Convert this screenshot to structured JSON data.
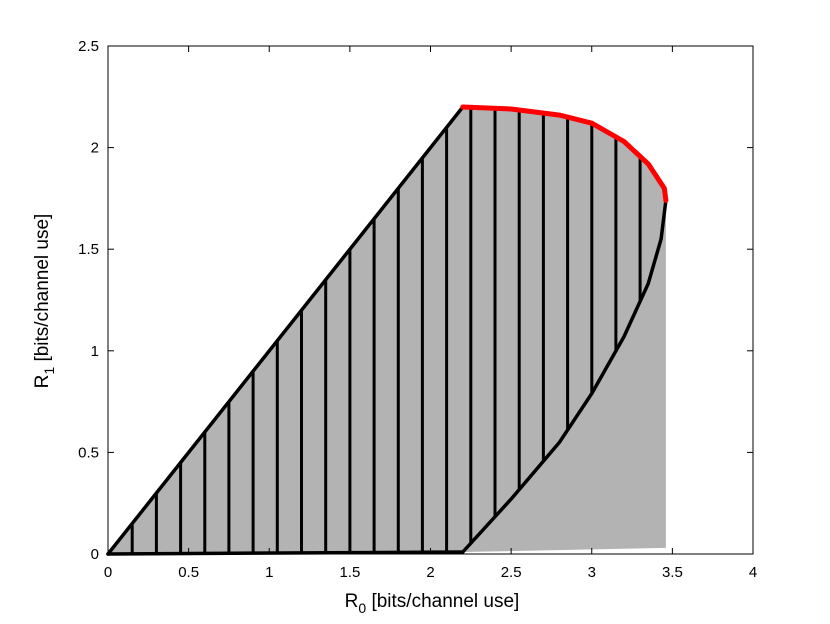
{
  "chart_data": {
    "type": "area",
    "title": "",
    "xlabel_main": "R",
    "xlabel_sub": "0",
    "xlabel_rest": " [bits/channel use]",
    "ylabel_main": "R",
    "ylabel_sub": "1",
    "ylabel_rest": " [bits/channel use]",
    "xlim": [
      0,
      4
    ],
    "ylim": [
      0,
      2.5
    ],
    "xticks": [
      0,
      0.5,
      1,
      1.5,
      2,
      2.5,
      3,
      3.5,
      4
    ],
    "xtick_labels": [
      "0",
      "0.5",
      "1",
      "1.5",
      "2",
      "2.5",
      "3",
      "3.5",
      "4"
    ],
    "yticks": [
      0,
      0.5,
      1,
      1.5,
      2,
      2.5
    ],
    "ytick_labels": [
      "0",
      "0.5",
      "1",
      "1.5",
      "2",
      "2.5"
    ],
    "grid": false,
    "colors": {
      "fill": "#b3b3b3",
      "boundary": "#000000",
      "highlight": "#ff0000"
    },
    "series": [
      {
        "role": "gray-filled-region",
        "points": [
          [
            0,
            0
          ],
          [
            2.2,
            2.2
          ],
          [
            2.5,
            2.19
          ],
          [
            2.8,
            2.16
          ],
          [
            3.0,
            2.12
          ],
          [
            3.2,
            2.03
          ],
          [
            3.35,
            1.92
          ],
          [
            3.45,
            1.8
          ],
          [
            3.46,
            1.74
          ],
          [
            3.46,
            0.03
          ],
          [
            2.2,
            0.01
          ],
          [
            0,
            0
          ]
        ]
      },
      {
        "role": "upper-diagonal-boundary",
        "points": [
          [
            0,
            0
          ],
          [
            2.2,
            2.2
          ]
        ]
      },
      {
        "role": "lower-bottom-boundary",
        "points": [
          [
            0,
            0
          ],
          [
            2.2,
            0.01
          ]
        ]
      },
      {
        "role": "lower-curve-boundary",
        "points": [
          [
            2.2,
            0.01
          ],
          [
            2.5,
            0.27
          ],
          [
            2.8,
            0.55
          ],
          [
            3.0,
            0.79
          ],
          [
            3.2,
            1.07
          ],
          [
            3.35,
            1.33
          ],
          [
            3.43,
            1.55
          ],
          [
            3.46,
            1.74
          ]
        ]
      },
      {
        "role": "upper-curve-red",
        "points": [
          [
            2.2,
            2.2
          ],
          [
            2.5,
            2.19
          ],
          [
            2.8,
            2.16
          ],
          [
            3.0,
            2.12
          ],
          [
            3.2,
            2.03
          ],
          [
            3.35,
            1.92
          ],
          [
            3.45,
            1.8
          ],
          [
            3.46,
            1.74
          ]
        ]
      }
    ],
    "hatch_x": [
      0.15,
      0.3,
      0.45,
      0.6,
      0.75,
      0.9,
      1.05,
      1.2,
      1.35,
      1.5,
      1.65,
      1.8,
      1.95,
      2.1,
      2.25,
      2.4,
      2.55,
      2.7,
      2.85,
      3.0,
      3.15,
      3.3
    ]
  }
}
